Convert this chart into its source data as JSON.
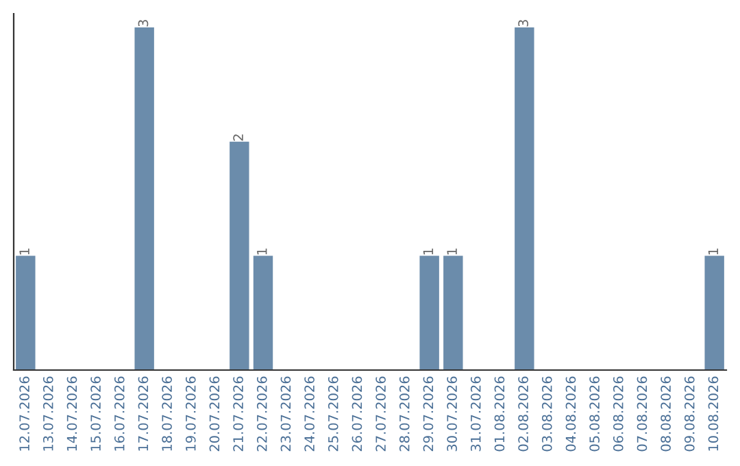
{
  "chart_data": {
    "type": "bar",
    "categories": [
      "12.07.2026",
      "13.07.2026",
      "14.07.2026",
      "15.07.2026",
      "16.07.2026",
      "17.07.2026",
      "18.07.2026",
      "19.07.2026",
      "20.07.2026",
      "21.07.2026",
      "22.07.2026",
      "23.07.2026",
      "24.07.2026",
      "25.07.2026",
      "26.07.2026",
      "27.07.2026",
      "28.07.2026",
      "29.07.2026",
      "30.07.2026",
      "31.07.2026",
      "01.08.2026",
      "02.08.2026",
      "03.08.2026",
      "04.08.2026",
      "05.08.2026",
      "06.08.2026",
      "07.08.2026",
      "08.08.2026",
      "09.08.2026",
      "10.08.2026"
    ],
    "values": [
      1,
      0,
      0,
      0,
      0,
      3,
      0,
      0,
      0,
      2,
      1,
      0,
      0,
      0,
      0,
      0,
      0,
      1,
      1,
      0,
      0,
      3,
      0,
      0,
      0,
      0,
      0,
      0,
      0,
      1
    ],
    "value_labels": [
      "1",
      null,
      null,
      null,
      null,
      "3",
      null,
      null,
      null,
      "2",
      "1",
      null,
      null,
      null,
      null,
      null,
      null,
      "1",
      "1",
      null,
      null,
      "3",
      null,
      null,
      null,
      null,
      null,
      null,
      null,
      "1"
    ],
    "color": "#6b8cab",
    "tick_labels": "x",
    "grid": false,
    "legend": false
  }
}
